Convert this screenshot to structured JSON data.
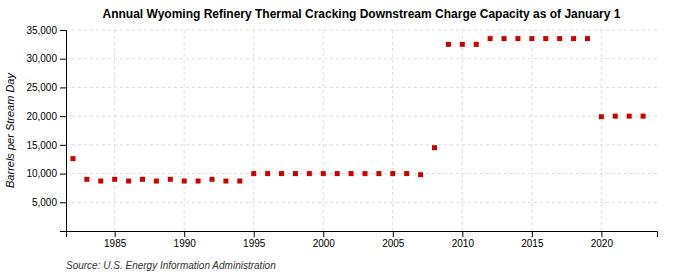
{
  "chart_data": {
    "type": "scatter",
    "title": "Annual Wyoming Refinery Thermal Cracking Downstream Charge Capacity as of January 1",
    "y_label": "Barrels per Stream Day",
    "annotations": [
      "Source: U.S. Energy Information Administration"
    ],
    "x": [
      1982,
      1983,
      1984,
      1985,
      1986,
      1987,
      1988,
      1989,
      1990,
      1991,
      1992,
      1993,
      1994,
      1995,
      1996,
      1997,
      1998,
      1999,
      2000,
      2001,
      2002,
      2003,
      2004,
      2005,
      2006,
      2007,
      2008,
      2009,
      2010,
      2011,
      2012,
      2013,
      2014,
      2015,
      2016,
      2017,
      2018,
      2019,
      2020,
      2021,
      2022,
      2023
    ],
    "values": [
      12600,
      9000,
      8700,
      9000,
      8700,
      9000,
      8700,
      9000,
      8700,
      8700,
      9000,
      8700,
      8700,
      10000,
      10000,
      10000,
      10000,
      10000,
      10000,
      10000,
      10000,
      10000,
      10000,
      10000,
      10000,
      9800,
      14500,
      32500,
      32500,
      32500,
      33500,
      33500,
      33500,
      33500,
      33500,
      33500,
      33500,
      33500,
      19900,
      20000,
      20000,
      20000
    ],
    "color": "#cc0000",
    "marker": "square",
    "xlim": [
      1981.5,
      2024
    ],
    "xticks": [
      1985,
      1990,
      1995,
      2000,
      2005,
      2010,
      2015,
      2020
    ],
    "ylim": [
      0,
      35000
    ],
    "yticks": [
      {
        "value": 5000,
        "label": "5,000"
      },
      {
        "value": 10000,
        "label": "10,000"
      },
      {
        "value": 15000,
        "label": "15,000"
      },
      {
        "value": 20000,
        "label": "20,000"
      },
      {
        "value": 25000,
        "label": "25,000"
      },
      {
        "value": 30000,
        "label": "30,000"
      },
      {
        "value": 35000,
        "label": "35,000"
      }
    ],
    "grid": true
  }
}
